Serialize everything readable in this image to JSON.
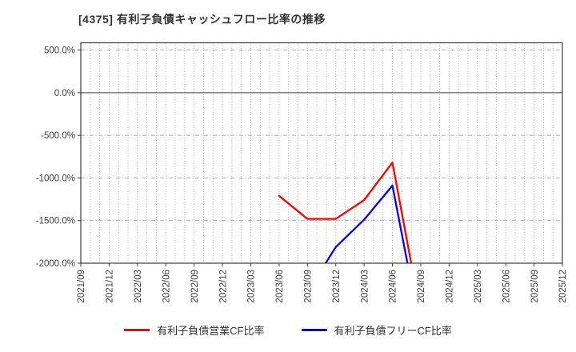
{
  "title": "[4375]  有利子負債キャッシュフロー比率の推移",
  "legend": {
    "items": [
      {
        "label": "有利子負債営業CF比率",
        "color": "#ff0000"
      },
      {
        "label": "有利子負債フリーCF比率",
        "color": "#0000ff"
      }
    ]
  },
  "colors": {
    "series_operating": "#ff0000",
    "series_free": "#0000ff",
    "grid": "#aaaaaa",
    "zero_line": "#707070",
    "spine": "#3c3c3c",
    "tick_text": "#3c3c3c",
    "title_text": "#333333",
    "background": "#ffffff"
  },
  "chart_data": {
    "type": "line",
    "title": "[4375] 有利子負債キャッシュフロー比率の推移",
    "x_axis": {
      "start": "2021/09",
      "end": "2025/12",
      "grid_interval": "monthly",
      "label_interval": "quarterly",
      "tick_labels": [
        "2021/09",
        "2021/12",
        "2022/03",
        "2022/06",
        "2022/09",
        "2022/12",
        "2023/03",
        "2023/06",
        "2023/09",
        "2023/12",
        "2024/03",
        "2024/06",
        "2024/09",
        "2024/12",
        "2025/03",
        "2025/06",
        "2025/09",
        "2025/12"
      ]
    },
    "y_axis": {
      "unit": "%",
      "ticks": [
        500,
        0,
        -500,
        -1000,
        -1500,
        -2000
      ],
      "tick_labels": [
        "500.0%",
        "0.0%",
        "-500.0%",
        "-1000.0%",
        "-1500.0%",
        "-2000.0%"
      ],
      "ylim": [
        -2000,
        585
      ]
    },
    "grid": true,
    "legend_position": "bottom-center",
    "series": [
      {
        "name": "有利子負債営業CF比率",
        "color": "#ff0000",
        "points": [
          {
            "x": "2023/06",
            "y": -1210
          },
          {
            "x": "2023/09",
            "y": -1480
          },
          {
            "x": "2023/12",
            "y": -1480
          },
          {
            "x": "2024/03",
            "y": -1260
          },
          {
            "x": "2024/06",
            "y": -820
          },
          {
            "x": "2024/09",
            "y": -2600
          }
        ]
      },
      {
        "name": "有利子負債フリーCF比率",
        "color": "#0000ff",
        "points": [
          {
            "x": "2023/09",
            "y": -2340
          },
          {
            "x": "2023/12",
            "y": -1810
          },
          {
            "x": "2024/03",
            "y": -1490
          },
          {
            "x": "2024/06",
            "y": -1090
          },
          {
            "x": "2024/09",
            "y": -2800
          }
        ]
      }
    ]
  }
}
